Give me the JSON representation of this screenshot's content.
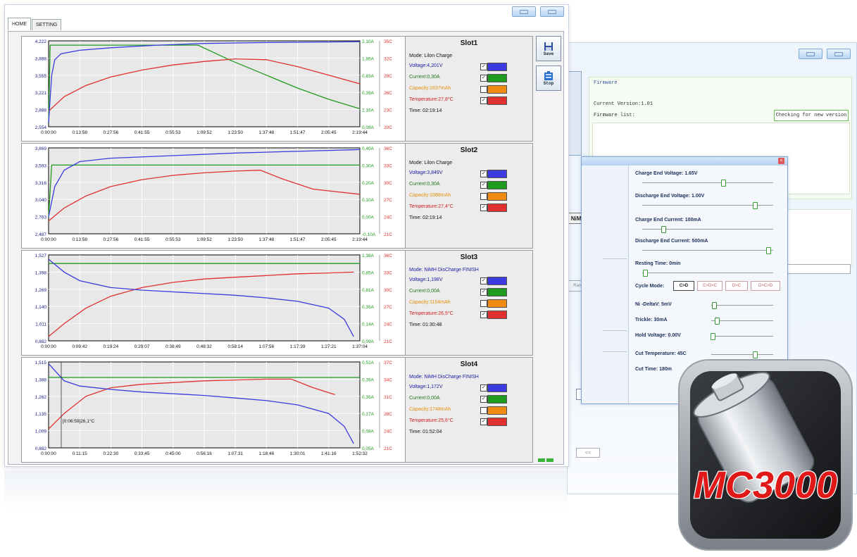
{
  "main_window": {
    "tabs": [
      {
        "label": "HOME",
        "active": true
      },
      {
        "label": "SETTING",
        "active": false
      }
    ],
    "side_buttons": [
      {
        "label": "Save",
        "icon": "floppy-disk-icon"
      },
      {
        "label": "Stop",
        "icon": "battery-stop-icon"
      }
    ]
  },
  "colors": {
    "voltage": "#3a3adf",
    "current": "#1e9a1e",
    "capacity": "#f08a10",
    "temperature": "#e03030",
    "plot_bg": "#e8e8e8"
  },
  "slots": [
    {
      "title": "Slot1",
      "mode": "Mode: Lilon  Charge",
      "voltage": "Voltage:4,201V",
      "current": "Current:0,30A",
      "capacity": "Capacity:1637mAh",
      "temperature": "Temperature:27,8°C",
      "time": "Time: 02:19:14",
      "checks": [
        true,
        true,
        false,
        true
      ],
      "chart_data": {
        "type": "line",
        "y_left_ticks": [
          "4,222",
          "3,888",
          "3,555",
          "3,221",
          "2,888",
          "2,554"
        ],
        "y_current_ticks": [
          "2,10A",
          "1,86A",
          "0,83A",
          "0,39A",
          "2,16A",
          "0,08A"
        ],
        "y_temp_ticks": [
          "35C",
          "32C",
          "29C",
          "26C",
          "23C",
          "20C"
        ],
        "x_ticks": [
          "0:00:00",
          "0:13:58",
          "0:27:56",
          "0:41:55",
          "0:55:53",
          "1:09:52",
          "1:23:50",
          "1:37:48",
          "1:51:47",
          "2:05:45",
          "2:19:44"
        ],
        "series": {
          "voltage": [
            [
              0,
              0.05
            ],
            [
              0.01,
              0.6
            ],
            [
              0.02,
              0.78
            ],
            [
              0.04,
              0.85
            ],
            [
              0.1,
              0.89
            ],
            [
              0.2,
              0.92
            ],
            [
              0.35,
              0.95
            ],
            [
              0.5,
              0.97
            ],
            [
              0.7,
              0.98
            ],
            [
              1,
              0.99
            ]
          ],
          "current": [
            [
              0,
              0.05
            ],
            [
              0.005,
              0.95
            ],
            [
              0.48,
              0.95
            ],
            [
              0.58,
              0.78
            ],
            [
              0.7,
              0.6
            ],
            [
              0.8,
              0.45
            ],
            [
              0.9,
              0.32
            ],
            [
              1,
              0.21
            ]
          ],
          "temperature": [
            [
              0,
              0.18
            ],
            [
              0.05,
              0.35
            ],
            [
              0.12,
              0.48
            ],
            [
              0.2,
              0.58
            ],
            [
              0.3,
              0.66
            ],
            [
              0.4,
              0.72
            ],
            [
              0.5,
              0.76
            ],
            [
              0.6,
              0.79
            ],
            [
              0.7,
              0.78
            ],
            [
              0.8,
              0.7
            ],
            [
              0.9,
              0.6
            ],
            [
              1,
              0.5
            ]
          ]
        }
      }
    },
    {
      "title": "Slot2",
      "mode": "Mode: Lilon  Charge",
      "voltage": "Voltage:3,849V",
      "current": "Current:0,30A",
      "capacity": "Capacity:1088mAh",
      "temperature": "Temperature:27,4°C",
      "time": "Time: 02:19:14",
      "checks": [
        true,
        true,
        false,
        true
      ],
      "chart_data": {
        "type": "line",
        "y_left_ticks": [
          "3,869",
          "3,593",
          "3,316",
          "3,040",
          "2,763",
          "2,487"
        ],
        "y_current_ticks": [
          "0,40A",
          "0,30A",
          "0,20A",
          "0,10A",
          "0,00A",
          "-0,10A"
        ],
        "y_temp_ticks": [
          "36C",
          "33C",
          "30C",
          "27C",
          "24C",
          "21C"
        ],
        "x_ticks": [
          "0:00:00",
          "0:13:58",
          "0:27:56",
          "0:41:55",
          "0:55:53",
          "1:09:52",
          "1:23:50",
          "1:37:48",
          "1:51:47",
          "2:05:45",
          "2:19:44"
        ],
        "series": {
          "voltage": [
            [
              0,
              0.2
            ],
            [
              0.02,
              0.55
            ],
            [
              0.05,
              0.74
            ],
            [
              0.1,
              0.84
            ],
            [
              0.2,
              0.88
            ],
            [
              0.4,
              0.91
            ],
            [
              0.6,
              0.94
            ],
            [
              0.8,
              0.96
            ],
            [
              1,
              0.98
            ]
          ],
          "current": [
            [
              0,
              0.2
            ],
            [
              0.01,
              0.8
            ],
            [
              1,
              0.8
            ]
          ],
          "temperature": [
            [
              0,
              0.15
            ],
            [
              0.05,
              0.3
            ],
            [
              0.12,
              0.44
            ],
            [
              0.2,
              0.55
            ],
            [
              0.3,
              0.63
            ],
            [
              0.4,
              0.68
            ],
            [
              0.5,
              0.71
            ],
            [
              0.6,
              0.73
            ],
            [
              0.68,
              0.74
            ],
            [
              0.75,
              0.64
            ],
            [
              0.85,
              0.52
            ],
            [
              1,
              0.46
            ]
          ]
        }
      }
    },
    {
      "title": "Slot3",
      "mode": "Mode: NiMH  DisCharge FINISH",
      "voltage": "Voltage:1,198V",
      "current": "Current:0,00A",
      "capacity": "Capacity:1104mAh",
      "temperature": "Temperature:26,5°C",
      "time": "Time: 01:30:48",
      "checks": [
        true,
        true,
        false,
        true
      ],
      "chart_data": {
        "type": "line",
        "y_left_ticks": [
          "1,527",
          "1,398",
          "1,269",
          "1,140",
          "1,011",
          "0,882"
        ],
        "y_current_ticks": [
          "1,38A",
          "0,85A",
          "0,81A",
          "0,35A",
          "0,14A",
          "0,09A"
        ],
        "y_temp_ticks": [
          "36C",
          "33C",
          "30C",
          "27C",
          "24C",
          "21C"
        ],
        "x_ticks": [
          "0:00:00",
          "0:09:42",
          "0:19:24",
          "0:29:07",
          "0:38:49",
          "0:48:32",
          "0:58:14",
          "1:07:56",
          "1:17:39",
          "1:27:21",
          "1:37:04"
        ],
        "series": {
          "voltage": [
            [
              0,
              0.95
            ],
            [
              0.05,
              0.8
            ],
            [
              0.1,
              0.7
            ],
            [
              0.2,
              0.62
            ],
            [
              0.3,
              0.59
            ],
            [
              0.4,
              0.57
            ],
            [
              0.5,
              0.55
            ],
            [
              0.6,
              0.53
            ],
            [
              0.7,
              0.5
            ],
            [
              0.8,
              0.46
            ],
            [
              0.9,
              0.38
            ],
            [
              0.95,
              0.25
            ],
            [
              0.98,
              0.05
            ]
          ],
          "current": [
            [
              0,
              0.9
            ],
            [
              1,
              0.9
            ]
          ],
          "temperature": [
            [
              0,
              0.05
            ],
            [
              0.05,
              0.2
            ],
            [
              0.12,
              0.38
            ],
            [
              0.2,
              0.52
            ],
            [
              0.3,
              0.62
            ],
            [
              0.4,
              0.68
            ],
            [
              0.5,
              0.72
            ],
            [
              0.6,
              0.74
            ],
            [
              0.7,
              0.76
            ],
            [
              0.8,
              0.78
            ],
            [
              0.9,
              0.79
            ],
            [
              0.98,
              0.8
            ]
          ]
        }
      }
    },
    {
      "title": "Slot4",
      "mode": "Mode: NiMH  DisCharge FINISH",
      "voltage": "Voltage:1,172V",
      "current": "Current:0,00A",
      "capacity": "Capacity:1748mAh",
      "temperature": "Temperature:25,6°C",
      "time": "Time: 01:52:04",
      "checks": [
        true,
        true,
        false,
        true
      ],
      "cursor_label": "[0:06:59]26,1°C",
      "chart_data": {
        "type": "line",
        "y_left_ticks": [
          "1,515",
          "1,388",
          "1,262",
          "1,135",
          "1,009",
          "0,882"
        ],
        "y_current_ticks": [
          "0,52A",
          "0,39A",
          "0,35A",
          "0,17A",
          "0,08A",
          "0,05A"
        ],
        "y_temp_ticks": [
          "37C",
          "34C",
          "31C",
          "28C",
          "24C",
          "21C"
        ],
        "x_ticks": [
          "0:00:00",
          "0:11:15",
          "0:22:30",
          "0:33:45",
          "0:45:00",
          "0:56:16",
          "1:07:31",
          "1:18:46",
          "1:30:01",
          "1:41:16",
          "1:52:32"
        ],
        "series": {
          "voltage": [
            [
              0,
              0.98
            ],
            [
              0.05,
              0.78
            ],
            [
              0.1,
              0.72
            ],
            [
              0.2,
              0.68
            ],
            [
              0.3,
              0.65
            ],
            [
              0.4,
              0.63
            ],
            [
              0.5,
              0.61
            ],
            [
              0.6,
              0.58
            ],
            [
              0.7,
              0.55
            ],
            [
              0.8,
              0.5
            ],
            [
              0.9,
              0.4
            ],
            [
              0.95,
              0.25
            ],
            [
              0.98,
              0.05
            ]
          ],
          "current": [
            [
              0,
              0.82
            ],
            [
              1,
              0.82
            ]
          ],
          "temperature": [
            [
              0,
              0.22
            ],
            [
              0.05,
              0.4
            ],
            [
              0.12,
              0.6
            ],
            [
              0.2,
              0.7
            ],
            [
              0.3,
              0.74
            ],
            [
              0.4,
              0.76
            ],
            [
              0.5,
              0.78
            ],
            [
              0.6,
              0.79
            ],
            [
              0.7,
              0.8
            ],
            [
              0.78,
              0.8
            ],
            [
              0.85,
              0.7
            ],
            [
              0.92,
              0.62
            ]
          ]
        }
      }
    }
  ],
  "firmware": {
    "title": "Firmware",
    "current_version": "Current Version:1.01",
    "list_label": "Firmware list:",
    "check_button": "Checking for new version"
  },
  "back_buttons": {
    "nimh": "NiMH",
    "range": "Range",
    "collapse": "<<",
    "collapse2": "<<"
  },
  "dialog": {
    "close": "×",
    "params": [
      {
        "label": "Charge End Voltage:  1.65V",
        "thumb": 0.62
      },
      {
        "label": "Discharge End Voltage:  1.00V",
        "thumb": 0.86
      },
      {
        "label": "Charge End Current:  100mA",
        "thumb": 0.16
      },
      {
        "label": "Discharge End Current:  500mA",
        "thumb": 0.96
      },
      {
        "label": "Resting Time:  0min",
        "thumb": 0.02
      },
      {
        "label": "Ni -DeltaV:  5mV",
        "thumb": 0.05
      },
      {
        "label": "Trickle:  30mA",
        "thumb": 0.09
      },
      {
        "label": "Hold Voltage:  0.00V",
        "thumb": 0.02
      },
      {
        "label": "Cut Temperature:  45C",
        "thumb": 0.7
      },
      {
        "label": "Cut Time:  180m",
        "thumb": 0.18
      }
    ],
    "cycle_label": "Cycle Mode:",
    "cycle_buttons": [
      "C>D",
      "C>D>C",
      "D>C",
      "D>C>D"
    ]
  },
  "app_icon": {
    "text": "MC3000"
  }
}
